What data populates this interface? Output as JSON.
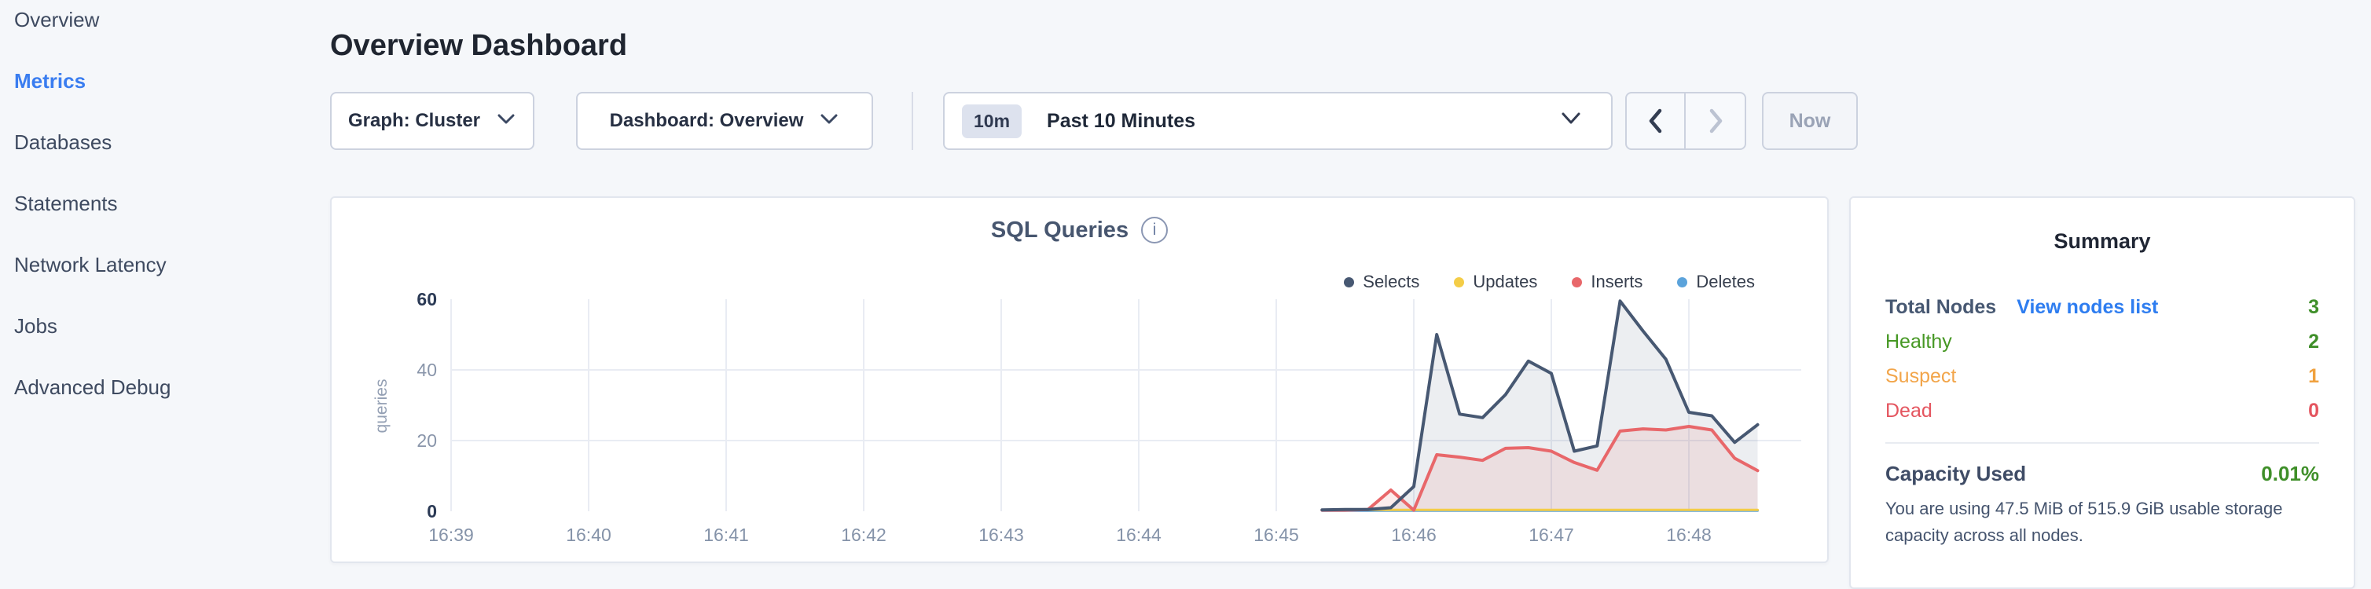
{
  "sidebar": {
    "items": [
      {
        "label": "Overview",
        "active": false
      },
      {
        "label": "Metrics",
        "active": true
      },
      {
        "label": "Databases",
        "active": false
      },
      {
        "label": "Statements",
        "active": false
      },
      {
        "label": "Network Latency",
        "active": false
      },
      {
        "label": "Jobs",
        "active": false
      },
      {
        "label": "Advanced Debug",
        "active": false
      }
    ],
    "active_color": "#3a7df0"
  },
  "header": {
    "title": "Overview Dashboard"
  },
  "toolbar": {
    "graph_selector": "Graph: Cluster",
    "dashboard_selector": "Dashboard: Overview",
    "time_window_badge": "10m",
    "time_window_label": "Past 10 Minutes",
    "now_button": "Now"
  },
  "chart": {
    "title": "SQL Queries",
    "info_icon": "i"
  },
  "chart_data": {
    "type": "area",
    "title": "SQL Queries",
    "ylabel": "queries",
    "ylim": [
      0,
      60
    ],
    "grid": true,
    "legend_position": "top-right",
    "yticks": [
      {
        "value": 60,
        "label": "60",
        "strong": true
      },
      {
        "value": 40,
        "label": "40",
        "strong": false
      },
      {
        "value": 20,
        "label": "20",
        "strong": false
      },
      {
        "value": 0,
        "label": "0",
        "strong": true
      }
    ],
    "gridlines_y": [
      40,
      20
    ],
    "xticks": [
      "16:39",
      "16:40",
      "16:41",
      "16:42",
      "16:43",
      "16:44",
      "16:45",
      "16:46",
      "16:47",
      "16:48"
    ],
    "x_times": [
      "16:45:20",
      "16:45:30",
      "16:45:40",
      "16:45:50",
      "16:46:00",
      "16:46:10",
      "16:46:20",
      "16:46:30",
      "16:46:40",
      "16:46:50",
      "16:47:00",
      "16:47:10",
      "16:47:20",
      "16:47:30",
      "16:47:40",
      "16:47:50",
      "16:48:00",
      "16:48:10",
      "16:48:20",
      "16:48:30"
    ],
    "series": [
      {
        "name": "Selects",
        "color": "#475872",
        "fill": "rgba(71,88,114,0.10)",
        "width": 4,
        "values": [
          0.4,
          0.5,
          0.5,
          1,
          7,
          50,
          27.5,
          26.5,
          33,
          42.5,
          39,
          17,
          18.5,
          59.5,
          51,
          43,
          28,
          27,
          19.5,
          24.5
        ]
      },
      {
        "name": "Updates",
        "color": "#f4cd47",
        "fill": null,
        "width": 3,
        "values": [
          0.4,
          0.4,
          0.4,
          0.4,
          0.4,
          0.4,
          0.4,
          0.4,
          0.4,
          0.4,
          0.4,
          0.4,
          0.4,
          0.4,
          0.4,
          0.4,
          0.4,
          0.4,
          0.4,
          0.4
        ]
      },
      {
        "name": "Inserts",
        "color": "#e8676a",
        "fill": "rgba(232,103,106,0.12)",
        "width": 4,
        "values": [
          0.3,
          0.3,
          0.5,
          6,
          0.3,
          16,
          15.3,
          14.4,
          17.8,
          18,
          17,
          13.8,
          11.6,
          22.7,
          23.3,
          23,
          24,
          23,
          15,
          11.5
        ]
      },
      {
        "name": "Deletes",
        "color": "#5ba3db",
        "fill": null,
        "width": 3,
        "values": [
          0.15,
          0.15,
          0.15,
          0.15,
          0.15,
          0.15,
          0.15,
          0.15,
          0.15,
          0.15,
          0.15,
          0.15,
          0.15,
          0.15,
          0.15,
          0.15,
          0.15,
          0.15,
          0.15,
          0.15
        ]
      }
    ]
  },
  "summary": {
    "title": "Summary",
    "rows": [
      {
        "label": "Total Nodes",
        "link": "View nodes list",
        "value": "3",
        "label_color": "#475872",
        "value_color": "#3f8f29"
      },
      {
        "label": "Healthy",
        "value": "2",
        "label_color": "#469824",
        "value_color": "#3f8f29"
      },
      {
        "label": "Suspect",
        "value": "1",
        "label_color": "#f2a54a",
        "value_color": "#f0a13e"
      },
      {
        "label": "Dead",
        "value": "0",
        "label_color": "#e4555f",
        "value_color": "#e4555f"
      }
    ],
    "capacity_label": "Capacity Used",
    "capacity_value": "0.01%",
    "capacity_caption": "You are using 47.5 MiB of 515.9 GiB usable storage capacity across all nodes."
  }
}
